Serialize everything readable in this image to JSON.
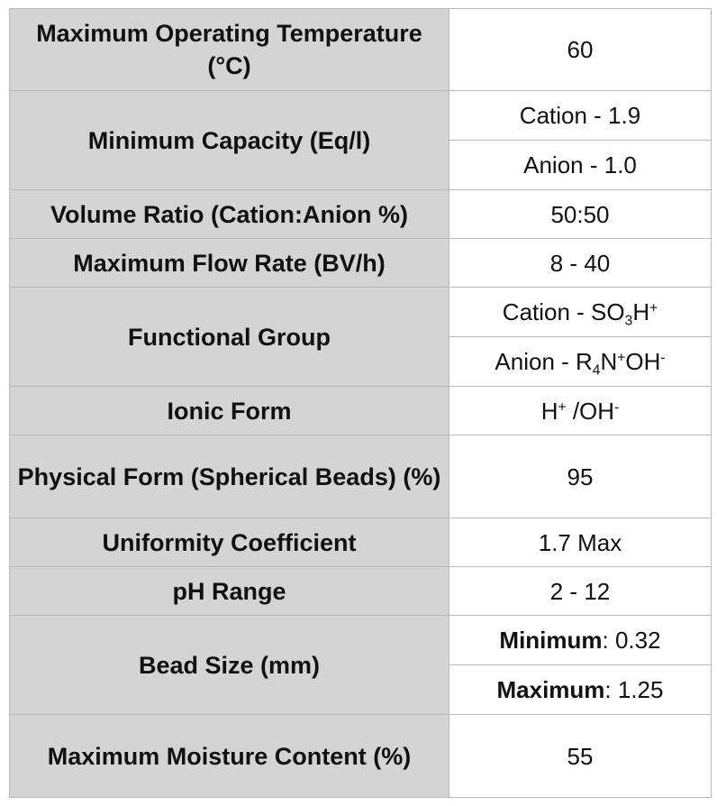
{
  "rows": {
    "max_temp": {
      "label": "Maximum Operating Temperature (°C)",
      "value": "60"
    },
    "min_capacity": {
      "label": "Minimum Capacity (Eq/l)",
      "cation": "Cation - 1.9",
      "anion": "Anion - 1.0"
    },
    "volume_ratio": {
      "label": "Volume Ratio (Cation:Anion %)",
      "value": "50:50"
    },
    "max_flow": {
      "label": "Maximum Flow Rate (BV/h)",
      "value": "8 - 40"
    },
    "functional_group": {
      "label": "Functional Group",
      "cation_prefix": "Cation - SO",
      "cation_sub": "3",
      "cation_h": "H",
      "cation_sup": "+",
      "anion_prefix": "Anion - R",
      "anion_sub": "4",
      "anion_n": "N",
      "anion_sup1": "+",
      "anion_oh": "OH",
      "anion_sup2": "-"
    },
    "ionic_form": {
      "label": "Ionic Form",
      "h": "H",
      "h_sup": "+",
      "oh": " /OH",
      "oh_sup": "-"
    },
    "physical_form": {
      "label": "Physical Form (Spherical Beads) (%)",
      "value": "95"
    },
    "uniformity": {
      "label": "Uniformity Coefficient",
      "value": "1.7 Max"
    },
    "ph_range": {
      "label": "pH Range",
      "value": "2 - 12"
    },
    "bead_size": {
      "label": "Bead Size (mm)",
      "min_key": "Minimum",
      "min_value": ": 0.32",
      "max_key": "Maximum",
      "max_value": ": 1.25"
    },
    "moisture": {
      "label": "Maximum Moisture Content (%)",
      "value": "55"
    }
  }
}
